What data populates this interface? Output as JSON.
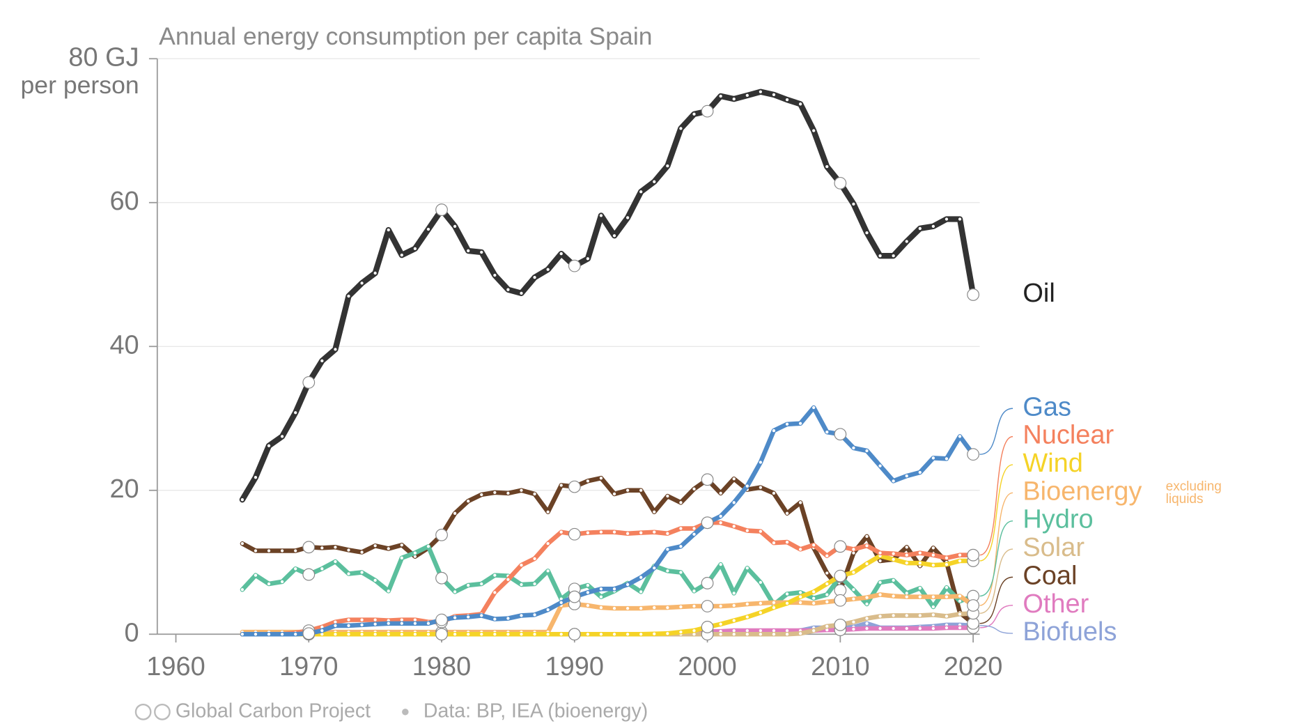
{
  "chart_data": {
    "type": "line",
    "title": "Annual energy consumption per capita Spain",
    "y_axis_label": "per person",
    "x": [
      1965,
      1966,
      1967,
      1968,
      1969,
      1970,
      1971,
      1972,
      1973,
      1974,
      1975,
      1976,
      1977,
      1978,
      1979,
      1980,
      1981,
      1982,
      1983,
      1984,
      1985,
      1986,
      1987,
      1988,
      1989,
      1990,
      1991,
      1992,
      1993,
      1994,
      1995,
      1996,
      1997,
      1998,
      1999,
      2000,
      2001,
      2002,
      2003,
      2004,
      2005,
      2006,
      2007,
      2008,
      2009,
      2010,
      2011,
      2012,
      2013,
      2014,
      2015,
      2016,
      2017,
      2018,
      2019,
      2020
    ],
    "xlim": [
      1958.6,
      2020.5
    ],
    "xticks": [
      1960,
      1970,
      1980,
      1990,
      2000,
      2010,
      2020
    ],
    "ylim": [
      0,
      80
    ],
    "yticks": [
      0,
      20,
      40,
      60,
      {
        "value": 80,
        "label": "80 GJ"
      }
    ],
    "grid": true,
    "series": [
      {
        "name": "Oil",
        "color": "#333333",
        "values": [
          18.7,
          21.8,
          26.2,
          27.5,
          30.8,
          35,
          38,
          39.6,
          47,
          48.8,
          50.2,
          56.2,
          52.7,
          53.6,
          56.3,
          59,
          56.7,
          53.3,
          53.1,
          49.9,
          47.9,
          47.4,
          49.6,
          50.7,
          52.9,
          51.2,
          52.2,
          58.2,
          55.4,
          57.9,
          61.5,
          62.9,
          65.1,
          70.3,
          72.3,
          72.7,
          74.8,
          74.4,
          74.9,
          75.4,
          75,
          74.3,
          73.7,
          70,
          65,
          62.7,
          59.8,
          55.8,
          52.6,
          52.6,
          54.6,
          56.4,
          56.7,
          57.7,
          57.7,
          47.2
        ]
      },
      {
        "name": "Gas",
        "color": "#4e8ac8",
        "values": [
          0,
          0,
          0,
          0,
          0,
          0.1,
          0.5,
          1.2,
          1.2,
          1.3,
          1.4,
          1.5,
          1.5,
          1.5,
          1.5,
          2.0,
          2.3,
          2.4,
          2.6,
          2.1,
          2.2,
          2.6,
          2.7,
          3.4,
          4.4,
          5.2,
          5.8,
          6.3,
          6.3,
          6.9,
          7.9,
          9.2,
          11.8,
          12.2,
          13.9,
          15.5,
          16.4,
          18.3,
          20.6,
          23.9,
          28.3,
          29.2,
          29.3,
          31.5,
          28.1,
          27.8,
          25.9,
          25.5,
          23.4,
          21.3,
          22,
          22.5,
          24.5,
          24.4,
          27.5,
          25
        ]
      },
      {
        "name": "Nuclear",
        "color": "#f4815e",
        "values": [
          0,
          0,
          0,
          0,
          0.2,
          0.5,
          1.0,
          1.7,
          2.0,
          2.0,
          2.0,
          1.9,
          2.0,
          2.0,
          1.7,
          1.7,
          2.5,
          2.6,
          2.8,
          5.8,
          7.6,
          9.6,
          10.5,
          12.6,
          14.2,
          13.9,
          14.1,
          14.2,
          14.2,
          14.0,
          14.1,
          14.2,
          14.0,
          14.7,
          14.7,
          15.5,
          15.5,
          15.0,
          14.4,
          14.3,
          12.7,
          12.8,
          11.8,
          12.4,
          10.9,
          12.2,
          11.8,
          12.3,
          11.3,
          11.2,
          11.0,
          11.3,
          11.0,
          10.6,
          11.0,
          11.0
        ]
      },
      {
        "name": "Wind",
        "color": "#f5d327",
        "values": [
          0,
          0,
          0,
          0,
          0,
          0,
          0,
          0,
          0,
          0,
          0,
          0,
          0,
          0,
          0,
          0,
          0,
          0,
          0,
          0,
          0,
          0,
          0,
          0,
          0,
          0,
          0,
          0,
          0,
          0,
          0,
          0.05,
          0.1,
          0.3,
          0.5,
          1.0,
          1.4,
          1.9,
          2.4,
          3.0,
          3.7,
          4.3,
          5.2,
          5.9,
          7.0,
          8.1,
          8.6,
          9.8,
          10.9,
          10.4,
          9.9,
          9.9,
          9.6,
          9.7,
          10.2,
          10.2
        ]
      },
      {
        "name": "Bioenergy",
        "color": "#f7b66d",
        "values": [
          0.3,
          0.3,
          0.3,
          0.3,
          0.3,
          0.3,
          0.3,
          0.3,
          0.3,
          0.3,
          0.3,
          0.3,
          0.3,
          0.3,
          0.3,
          0.3,
          0.3,
          0.3,
          0.3,
          0.3,
          0.3,
          0.3,
          0.3,
          0.3,
          4.0,
          4.2,
          4.0,
          3.7,
          3.6,
          3.6,
          3.6,
          3.7,
          3.7,
          3.8,
          3.9,
          3.9,
          3.9,
          4.0,
          4.2,
          4.3,
          4.4,
          4.4,
          4.4,
          4.3,
          4.5,
          4.7,
          4.9,
          5.1,
          5.5,
          5.3,
          5.2,
          5.2,
          5.2,
          5.2,
          5.3,
          4.0
        ]
      },
      {
        "name": "Hydro",
        "color": "#5bbf9d",
        "values": [
          6.2,
          8.2,
          7.0,
          7.3,
          9.1,
          8.3,
          9.1,
          10.1,
          8.4,
          8.6,
          7.5,
          6.0,
          10.6,
          11.3,
          12.2,
          7.8,
          5.9,
          6.8,
          7.0,
          8.2,
          8.1,
          6.9,
          7.0,
          8.8,
          4.9,
          6.3,
          6.8,
          5.2,
          6.0,
          7.1,
          5.9,
          9.5,
          8.8,
          8.6,
          6.0,
          7.1,
          9.7,
          5.7,
          9.2,
          7.2,
          4.1,
          5.6,
          5.8,
          5.0,
          5.5,
          8.0,
          6.2,
          4.2,
          7.2,
          7.5,
          5.7,
          6.4,
          3.8,
          6.5,
          4.6,
          5.3
        ]
      },
      {
        "name": "Solar",
        "color": "#d9bc8b",
        "values": [
          0,
          0,
          0,
          0,
          0,
          0,
          0,
          0,
          0,
          0,
          0,
          0,
          0,
          0,
          0,
          0,
          0,
          0,
          0,
          0,
          0,
          0,
          0,
          0,
          0,
          0,
          0,
          0,
          0,
          0,
          0,
          0,
          0,
          0,
          0,
          0,
          0,
          0,
          0,
          0,
          0,
          0,
          0.1,
          0.5,
          1.1,
          1.3,
          1.7,
          2.2,
          2.5,
          2.6,
          2.6,
          2.6,
          2.7,
          2.5,
          2.8,
          2.9
        ]
      },
      {
        "name": "Coal",
        "color": "#6b4226",
        "values": [
          12.6,
          11.6,
          11.6,
          11.6,
          11.6,
          12.1,
          12.0,
          12.1,
          11.7,
          11.4,
          12.3,
          11.9,
          12.4,
          10.8,
          12.0,
          13.8,
          16.8,
          18.5,
          19.4,
          19.7,
          19.6,
          20.0,
          19.5,
          17.0,
          20.7,
          20.5,
          21.3,
          21.7,
          19.5,
          20.0,
          20.0,
          17.0,
          19.2,
          18.3,
          20.2,
          21.5,
          19.6,
          21.6,
          20.1,
          20.4,
          19.6,
          16.8,
          18.3,
          12.0,
          8.5,
          6.1,
          11.3,
          13.6,
          10.2,
          10.4,
          12.1,
          9.5,
          12.0,
          10.0,
          3.0,
          1.5
        ]
      },
      {
        "name": "Other",
        "color": "#e07bbf",
        "values": [
          0,
          0,
          0,
          0,
          0,
          0,
          0,
          0,
          0,
          0,
          0,
          0,
          0,
          0,
          0,
          0,
          0,
          0,
          0,
          0,
          0,
          0,
          0,
          0,
          0,
          0,
          0,
          0,
          0,
          0,
          0,
          0,
          0,
          0,
          0,
          0.4,
          0.4,
          0.5,
          0.5,
          0.5,
          0.5,
          0.5,
          0.5,
          0.5,
          0.6,
          0.6,
          0.7,
          0.8,
          0.8,
          0.8,
          0.8,
          0.8,
          0.8,
          0.9,
          0.9,
          0.9
        ]
      },
      {
        "name": "Biofuels",
        "color": "#8ea3d8",
        "values": [
          0,
          0,
          0,
          0,
          0,
          0,
          0,
          0,
          0,
          0,
          0,
          0,
          0,
          0,
          0,
          0,
          0,
          0,
          0,
          0,
          0,
          0,
          0,
          0,
          0,
          0,
          0,
          0,
          0,
          0,
          0,
          0,
          0,
          0,
          0,
          0,
          0,
          0,
          0,
          0,
          0.3,
          0.4,
          0.5,
          0.9,
          0.9,
          1.0,
          1.0,
          1.5,
          0.9,
          0.9,
          0.9,
          1.0,
          1.1,
          1.3,
          1.3,
          1.2
        ]
      }
    ],
    "annotation_lines": [
      "excluding",
      "liquids"
    ],
    "footer_source": "Global Carbon Project",
    "footer_data": "Data: BP, IEA (bioenergy)"
  }
}
